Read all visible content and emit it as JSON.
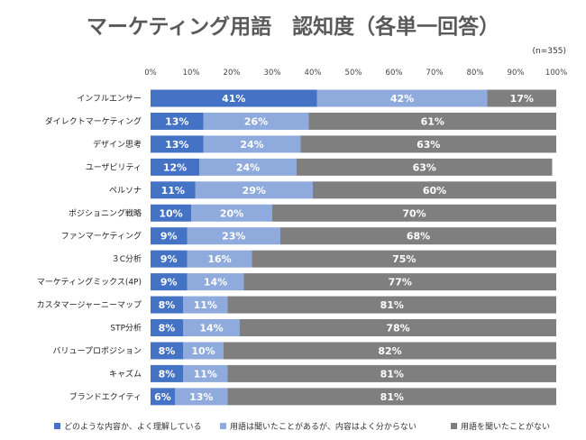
{
  "chart_data": {
    "type": "bar",
    "orientation": "horizontal",
    "stacked": true,
    "title": "マーケティング用語　認知度（各単一回答）",
    "note": "(n=355)",
    "xlim": [
      0,
      100
    ],
    "x_ticks": [
      "0%",
      "10%",
      "20%",
      "30%",
      "40%",
      "50%",
      "60%",
      "70%",
      "80%",
      "90%",
      "100%"
    ],
    "categories": [
      "インフルエンサー",
      "ダイレクトマーケティング",
      "デザイン思考",
      "ユーザビリティ",
      "ペルソナ",
      "ポジショニング戦略",
      "ファンマーケティング",
      "３C分析",
      "マーケティングミックス(4P)",
      "カスタマージャーニーマップ",
      "STP分析",
      "バリュープロポジション",
      "キャズム",
      "ブランドエクイティ"
    ],
    "series": [
      {
        "name": "どのような内容か、よく理解している",
        "color": "#4472c4",
        "values": [
          41,
          13,
          13,
          12,
          11,
          10,
          9,
          9,
          9,
          8,
          8,
          8,
          8,
          6
        ]
      },
      {
        "name": "用語は聞いたことがあるが、内容はよく分からない",
        "color": "#8faadc",
        "values": [
          42,
          26,
          24,
          24,
          29,
          20,
          23,
          16,
          14,
          11,
          14,
          10,
          11,
          13
        ]
      },
      {
        "name": "用語を聞いたことがない",
        "color": "#7f7f7f",
        "values": [
          17,
          61,
          63,
          63,
          60,
          70,
          68,
          75,
          77,
          81,
          78,
          82,
          81,
          81
        ]
      }
    ],
    "value_suffix": "%",
    "legend_position": "bottom",
    "grid": false
  }
}
